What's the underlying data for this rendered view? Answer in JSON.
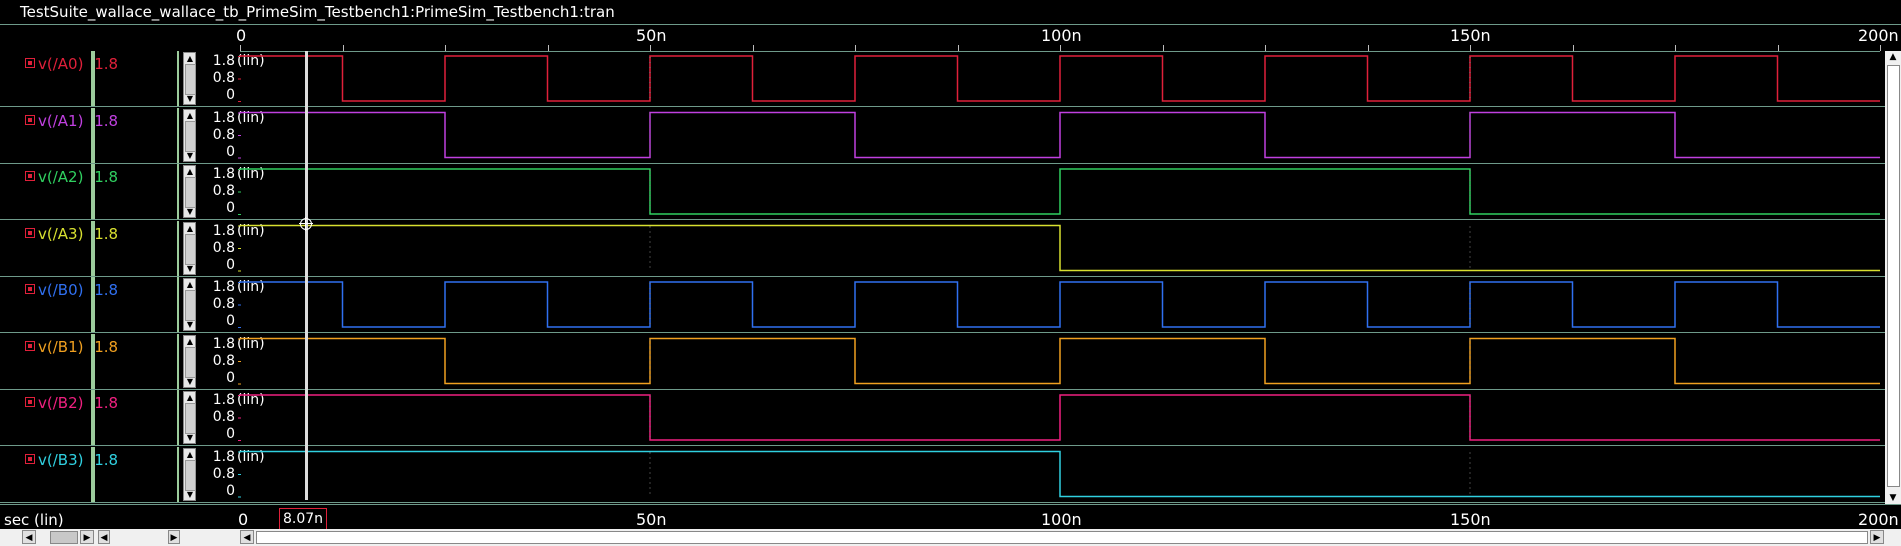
{
  "window": {
    "title": "TestSuite_wallace_wallace_tb_PrimeSim_Testbench1:PrimeSim_Testbench1:tran"
  },
  "time_axis": {
    "unit_label": "sec (lin)",
    "tick_labels": [
      "0",
      "50n",
      "100n",
      "150n",
      "200n"
    ],
    "range_ns": [
      0,
      200
    ],
    "cursor_value": "8.07n",
    "cursor_ns": 8.07
  },
  "y_axis": {
    "labels": [
      "1.8",
      "0.8",
      "0"
    ],
    "scale": "(lin)",
    "range": [
      0,
      1.8
    ]
  },
  "colors": {
    "grid": "#6e9a8a",
    "cursor": "#dddddd",
    "marker": "#e0203a"
  },
  "signals": [
    {
      "name": "v(/A0)",
      "value": "1.8",
      "color": "#e0203a",
      "period_ns": 25,
      "start_high": true
    },
    {
      "name": "v(/A1)",
      "value": "1.8",
      "color": "#c040e0",
      "period_ns": 50,
      "start_high": true
    },
    {
      "name": "v(/A2)",
      "value": "1.8",
      "color": "#30d060",
      "period_ns": 100,
      "start_high": true
    },
    {
      "name": "v(/A3)",
      "value": "1.8",
      "color": "#d8e030",
      "period_ns": 200,
      "start_high": true
    },
    {
      "name": "v(/B0)",
      "value": "1.8",
      "color": "#3070f0",
      "period_ns": 25,
      "start_high": true
    },
    {
      "name": "v(/B1)",
      "value": "1.8",
      "color": "#f0a020",
      "period_ns": 50,
      "start_high": true
    },
    {
      "name": "v(/B2)",
      "value": "1.8",
      "color": "#f02080",
      "period_ns": 100,
      "start_high": true
    },
    {
      "name": "v(/B3)",
      "value": "1.8",
      "color": "#30d0e0",
      "period_ns": 200,
      "start_high": true
    }
  ]
}
